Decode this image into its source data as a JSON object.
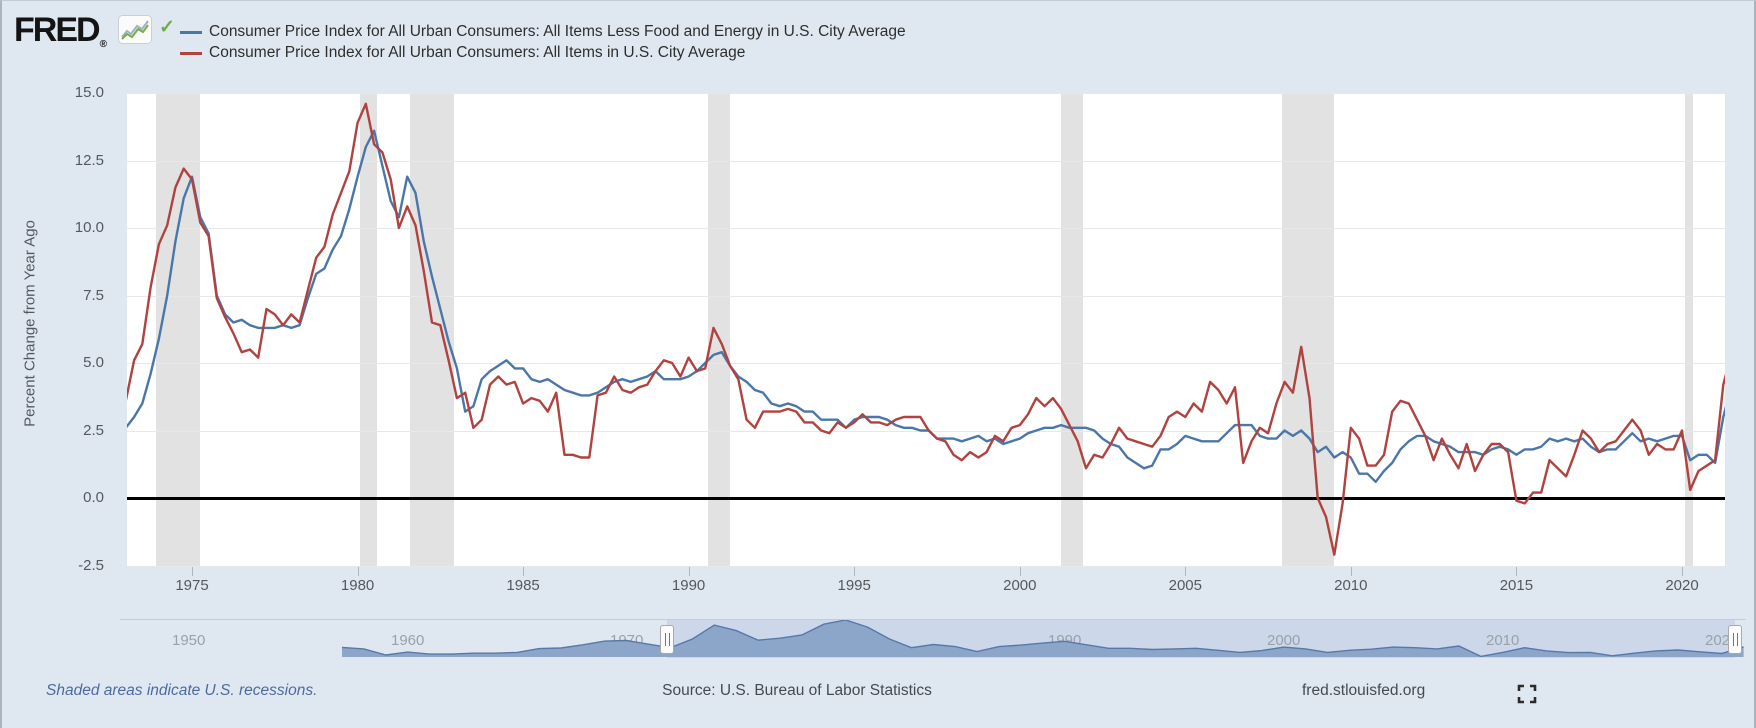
{
  "header": {
    "logo": {
      "text": "FRED",
      "reg": "®"
    },
    "legend": [
      {
        "label": "Consumer Price Index for All Urban Consumers: All Items Less Food and Energy in U.S. City Average",
        "color": "#4a77a8"
      },
      {
        "label": "Consumer Price Index for All Urban Consumers: All Items in U.S. City Average",
        "color": "#b0423f"
      }
    ]
  },
  "chart": {
    "y_axis_title": "Percent Change from Year Ago",
    "y_ticks": [
      "15.0",
      "12.5",
      "10.0",
      "7.5",
      "5.0",
      "2.5",
      "0.0",
      "-2.5"
    ],
    "x_ticks": [
      "1975",
      "1980",
      "1985",
      "1990",
      "1995",
      "2000",
      "2005",
      "2010",
      "2015",
      "2020"
    ]
  },
  "chart_data": {
    "type": "line",
    "title": "",
    "xlabel": "",
    "ylabel": "Percent Change from Year Ago",
    "ylim": [
      -2.5,
      15.0
    ],
    "xlim": [
      1973.0,
      2021.42
    ],
    "grid": "horizontal",
    "zero_line": 0.0,
    "recessions": [
      [
        1973.92,
        1975.25
      ],
      [
        1980.08,
        1980.58
      ],
      [
        1981.58,
        1982.92
      ],
      [
        1990.58,
        1991.25
      ],
      [
        2001.25,
        2001.92
      ],
      [
        2007.92,
        2009.5
      ],
      [
        2020.08,
        2020.33
      ]
    ],
    "series": [
      {
        "name": "Consumer Price Index for All Urban Consumers: All Items Less Food and Energy in U.S. City Average",
        "color": "#4a77a8",
        "points": [
          1973,
          2.6,
          1973.25,
          3.0,
          1973.5,
          3.5,
          1973.75,
          4.6,
          1974,
          5.9,
          1974.25,
          7.5,
          1974.5,
          9.5,
          1974.75,
          11.1,
          1975,
          11.9,
          1975.25,
          10.4,
          1975.5,
          9.8,
          1975.75,
          7.5,
          1976,
          6.8,
          1976.25,
          6.5,
          1976.5,
          6.6,
          1976.75,
          6.4,
          1977,
          6.3,
          1977.25,
          6.3,
          1977.5,
          6.3,
          1977.75,
          6.4,
          1978,
          6.3,
          1978.25,
          6.4,
          1978.5,
          7.4,
          1978.75,
          8.3,
          1979,
          8.5,
          1979.25,
          9.2,
          1979.5,
          9.7,
          1979.75,
          10.7,
          1980,
          11.9,
          1980.25,
          13.0,
          1980.5,
          13.6,
          1980.75,
          12.3,
          1981,
          11.0,
          1981.25,
          10.4,
          1981.5,
          11.9,
          1981.75,
          11.3,
          1982,
          9.5,
          1982.25,
          8.2,
          1982.5,
          7.0,
          1982.75,
          5.8,
          1983,
          4.8,
          1983.25,
          3.2,
          1983.5,
          3.4,
          1983.75,
          4.4,
          1984,
          4.7,
          1984.25,
          4.9,
          1984.5,
          5.1,
          1984.75,
          4.8,
          1985,
          4.8,
          1985.25,
          4.4,
          1985.5,
          4.3,
          1985.75,
          4.4,
          1986,
          4.2,
          1986.25,
          4.0,
          1986.5,
          3.9,
          1986.75,
          3.8,
          1987,
          3.8,
          1987.25,
          3.9,
          1987.5,
          4.1,
          1987.75,
          4.3,
          1988,
          4.4,
          1988.25,
          4.3,
          1988.5,
          4.4,
          1988.75,
          4.5,
          1989,
          4.7,
          1989.25,
          4.4,
          1989.5,
          4.4,
          1989.75,
          4.4,
          1990,
          4.5,
          1990.25,
          4.7,
          1990.5,
          5.0,
          1990.75,
          5.3,
          1991,
          5.4,
          1991.25,
          4.9,
          1991.5,
          4.5,
          1991.75,
          4.3,
          1992,
          4.0,
          1992.25,
          3.9,
          1992.5,
          3.5,
          1992.75,
          3.4,
          1993,
          3.5,
          1993.25,
          3.4,
          1993.5,
          3.2,
          1993.75,
          3.2,
          1994,
          2.9,
          1994.25,
          2.9,
          1994.5,
          2.9,
          1994.75,
          2.6,
          1995,
          2.9,
          1995.25,
          3.0,
          1995.5,
          3.0,
          1995.75,
          3.0,
          1996,
          2.9,
          1996.25,
          2.7,
          1996.5,
          2.6,
          1996.75,
          2.6,
          1997,
          2.5,
          1997.25,
          2.5,
          1997.5,
          2.2,
          1997.75,
          2.2,
          1998,
          2.2,
          1998.25,
          2.1,
          1998.5,
          2.2,
          1998.75,
          2.3,
          1999,
          2.1,
          1999.25,
          2.2,
          1999.5,
          2.0,
          1999.75,
          2.1,
          2000,
          2.2,
          2000.25,
          2.4,
          2000.5,
          2.5,
          2000.75,
          2.6,
          2001,
          2.6,
          2001.25,
          2.7,
          2001.5,
          2.6,
          2001.75,
          2.6,
          2002,
          2.6,
          2002.25,
          2.5,
          2002.5,
          2.2,
          2002.75,
          2.0,
          2003,
          1.9,
          2003.25,
          1.5,
          2003.5,
          1.3,
          2003.75,
          1.1,
          2004,
          1.2,
          2004.25,
          1.8,
          2004.5,
          1.8,
          2004.75,
          2.0,
          2005,
          2.3,
          2005.25,
          2.2,
          2005.5,
          2.1,
          2005.75,
          2.1,
          2006,
          2.1,
          2006.25,
          2.4,
          2006.5,
          2.7,
          2006.75,
          2.7,
          2007,
          2.7,
          2007.25,
          2.3,
          2007.5,
          2.2,
          2007.75,
          2.2,
          2008,
          2.5,
          2008.25,
          2.3,
          2008.5,
          2.5,
          2008.75,
          2.2,
          2009,
          1.7,
          2009.25,
          1.9,
          2009.5,
          1.5,
          2009.75,
          1.7,
          2010,
          1.5,
          2010.25,
          0.9,
          2010.5,
          0.9,
          2010.75,
          0.6,
          2011,
          1.0,
          2011.25,
          1.3,
          2011.5,
          1.8,
          2011.75,
          2.1,
          2012,
          2.3,
          2012.25,
          2.3,
          2012.5,
          2.1,
          2012.75,
          2.0,
          2013,
          1.9,
          2013.25,
          1.7,
          2013.5,
          1.7,
          2013.75,
          1.7,
          2014,
          1.6,
          2014.25,
          1.8,
          2014.5,
          1.9,
          2014.75,
          1.8,
          2015,
          1.6,
          2015.25,
          1.8,
          2015.5,
          1.8,
          2015.75,
          1.9,
          2016,
          2.2,
          2016.25,
          2.1,
          2016.5,
          2.2,
          2016.75,
          2.1,
          2017,
          2.2,
          2017.25,
          1.9,
          2017.5,
          1.7,
          2017.75,
          1.8,
          2018,
          1.8,
          2018.25,
          2.1,
          2018.5,
          2.4,
          2018.75,
          2.1,
          2019,
          2.2,
          2019.25,
          2.1,
          2019.5,
          2.2,
          2019.75,
          2.3,
          2020,
          2.3,
          2020.25,
          1.4,
          2020.5,
          1.6,
          2020.75,
          1.6,
          2021,
          1.3,
          2021.25,
          3.0,
          2021.42,
          3.8
        ]
      },
      {
        "name": "Consumer Price Index for All Urban Consumers: All Items in U.S. City Average",
        "color": "#b0423f",
        "points": [
          1973,
          3.6,
          1973.25,
          5.1,
          1973.5,
          5.7,
          1973.75,
          7.8,
          1974,
          9.4,
          1974.25,
          10.1,
          1974.5,
          11.5,
          1974.75,
          12.2,
          1975,
          11.8,
          1975.25,
          10.2,
          1975.5,
          9.7,
          1975.75,
          7.4,
          1976,
          6.7,
          1976.25,
          6.1,
          1976.5,
          5.4,
          1976.75,
          5.5,
          1977,
          5.2,
          1977.25,
          7.0,
          1977.5,
          6.8,
          1977.75,
          6.4,
          1978,
          6.8,
          1978.25,
          6.5,
          1978.5,
          7.7,
          1978.75,
          8.9,
          1979,
          9.3,
          1979.25,
          10.5,
          1979.5,
          11.3,
          1979.75,
          12.1,
          1980,
          13.9,
          1980.25,
          14.6,
          1980.5,
          13.1,
          1980.75,
          12.8,
          1981,
          11.8,
          1981.25,
          10.0,
          1981.5,
          10.8,
          1981.75,
          10.1,
          1982,
          8.4,
          1982.25,
          6.5,
          1982.5,
          6.4,
          1982.75,
          5.1,
          1983,
          3.7,
          1983.25,
          3.9,
          1983.5,
          2.6,
          1983.75,
          2.9,
          1984,
          4.2,
          1984.25,
          4.5,
          1984.5,
          4.2,
          1984.75,
          4.3,
          1985,
          3.5,
          1985.25,
          3.7,
          1985.5,
          3.6,
          1985.75,
          3.2,
          1986,
          3.9,
          1986.25,
          1.6,
          1986.5,
          1.6,
          1986.75,
          1.5,
          1987,
          1.5,
          1987.25,
          3.8,
          1987.5,
          3.9,
          1987.75,
          4.5,
          1988,
          4.0,
          1988.25,
          3.9,
          1988.5,
          4.1,
          1988.75,
          4.2,
          1989,
          4.7,
          1989.25,
          5.1,
          1989.5,
          5.0,
          1989.75,
          4.5,
          1990,
          5.2,
          1990.25,
          4.7,
          1990.5,
          4.8,
          1990.75,
          6.3,
          1991,
          5.7,
          1991.25,
          4.9,
          1991.5,
          4.4,
          1991.75,
          2.9,
          1992,
          2.6,
          1992.25,
          3.2,
          1992.5,
          3.2,
          1992.75,
          3.2,
          1993,
          3.3,
          1993.25,
          3.2,
          1993.5,
          2.8,
          1993.75,
          2.8,
          1994,
          2.5,
          1994.25,
          2.4,
          1994.5,
          2.8,
          1994.75,
          2.6,
          1995,
          2.8,
          1995.25,
          3.1,
          1995.5,
          2.8,
          1995.75,
          2.8,
          1996,
          2.7,
          1996.25,
          2.9,
          1996.5,
          3.0,
          1996.75,
          3.0,
          1997,
          3.0,
          1997.25,
          2.5,
          1997.5,
          2.2,
          1997.75,
          2.1,
          1998,
          1.6,
          1998.25,
          1.4,
          1998.5,
          1.7,
          1998.75,
          1.5,
          1999,
          1.7,
          1999.25,
          2.3,
          1999.5,
          2.1,
          1999.75,
          2.6,
          2000,
          2.7,
          2000.25,
          3.1,
          2000.5,
          3.7,
          2000.75,
          3.4,
          2001,
          3.7,
          2001.25,
          3.3,
          2001.5,
          2.7,
          2001.75,
          2.1,
          2002,
          1.1,
          2002.25,
          1.6,
          2002.5,
          1.5,
          2002.75,
          2.0,
          2003,
          2.6,
          2003.25,
          2.2,
          2003.5,
          2.1,
          2003.75,
          2.0,
          2004,
          1.9,
          2004.25,
          2.3,
          2004.5,
          3.0,
          2004.75,
          3.2,
          2005,
          3.0,
          2005.25,
          3.5,
          2005.5,
          3.2,
          2005.75,
          4.3,
          2006,
          4.0,
          2006.25,
          3.5,
          2006.5,
          4.1,
          2006.75,
          1.3,
          2007,
          2.1,
          2007.25,
          2.6,
          2007.5,
          2.4,
          2007.75,
          3.5,
          2008,
          4.3,
          2008.25,
          3.9,
          2008.5,
          5.6,
          2008.75,
          3.7,
          2009,
          0.0,
          2009.25,
          -0.7,
          2009.5,
          -2.1,
          2009.75,
          -0.2,
          2010,
          2.6,
          2010.25,
          2.2,
          2010.5,
          1.2,
          2010.75,
          1.2,
          2011,
          1.6,
          2011.25,
          3.2,
          2011.5,
          3.6,
          2011.75,
          3.5,
          2012,
          2.9,
          2012.25,
          2.3,
          2012.5,
          1.4,
          2012.75,
          2.2,
          2013,
          1.6,
          2013.25,
          1.1,
          2013.5,
          2.0,
          2013.75,
          1.0,
          2014,
          1.6,
          2014.25,
          2.0,
          2014.5,
          2.0,
          2014.75,
          1.7,
          2015,
          -0.1,
          2015.25,
          -0.2,
          2015.5,
          0.2,
          2015.75,
          0.2,
          2016,
          1.4,
          2016.25,
          1.1,
          2016.5,
          0.8,
          2016.75,
          1.6,
          2017,
          2.5,
          2017.25,
          2.2,
          2017.5,
          1.7,
          2017.75,
          2.0,
          2018,
          2.1,
          2018.25,
          2.5,
          2018.5,
          2.9,
          2018.75,
          2.5,
          2019,
          1.6,
          2019.25,
          2.0,
          2019.5,
          1.8,
          2019.75,
          1.8,
          2020,
          2.5,
          2020.25,
          0.3,
          2020.5,
          1.0,
          2020.75,
          1.2,
          2021,
          1.4,
          2021.25,
          4.2,
          2021.42,
          5.0
        ]
      }
    ],
    "slider": {
      "ticks": [
        "1950",
        "1960",
        "1970",
        "1980",
        "1990",
        "2000",
        "2010",
        "2020"
      ],
      "selected_range": [
        1972.8,
        2021.4
      ],
      "series": [
        1957,
        3.3,
        1958,
        2.8,
        1959,
        0.7,
        1960,
        1.7,
        1961,
        1.0,
        1962,
        1.0,
        1963,
        1.3,
        1964,
        1.3,
        1965,
        1.6,
        1966,
        2.9,
        1967,
        3.1,
        1968,
        4.2,
        1969,
        5.5,
        1970,
        5.7,
        1971,
        4.4,
        1972,
        3.2,
        1973,
        6.2,
        1974,
        11.0,
        1975,
        9.1,
        1976,
        5.8,
        1977,
        6.5,
        1978,
        7.6,
        1979,
        11.3,
        1980,
        13.5,
        1981,
        10.3,
        1982,
        6.2,
        1983,
        3.2,
        1984,
        4.3,
        1985,
        3.6,
        1986,
        1.9,
        1987,
        3.6,
        1988,
        4.1,
        1989,
        4.8,
        1990,
        5.4,
        1991,
        4.2,
        1992,
        3.0,
        1993,
        3.0,
        1994,
        2.6,
        1995,
        2.8,
        1996,
        3.0,
        1997,
        2.3,
        1998,
        1.6,
        1999,
        2.2,
        2000,
        3.4,
        2001,
        2.8,
        2002,
        1.6,
        2003,
        2.3,
        2004,
        2.7,
        2005,
        3.4,
        2006,
        3.2,
        2007,
        2.8,
        2008,
        3.8,
        2009,
        0.2,
        2010,
        1.6,
        2011,
        3.2,
        2012,
        2.1,
        2013,
        1.5,
        2014,
        1.6,
        2015,
        0.4,
        2016,
        1.3,
        2017,
        2.1,
        2018,
        2.4,
        2019,
        1.8,
        2020,
        1.2,
        2021,
        3.5
      ]
    }
  },
  "footer": {
    "note": "Shaded areas indicate U.S. recessions.",
    "source": "Source: U.S. Bureau of Labor Statistics",
    "site": "fred.stlouisfed.org"
  }
}
